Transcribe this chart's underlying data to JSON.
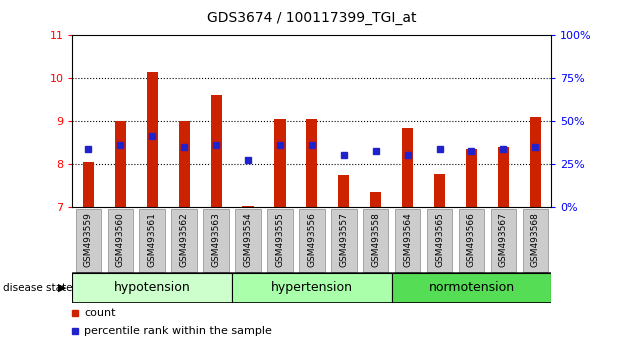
{
  "title": "GDS3674 / 100117399_TGI_at",
  "samples": [
    "GSM493559",
    "GSM493560",
    "GSM493561",
    "GSM493562",
    "GSM493563",
    "GSM493554",
    "GSM493555",
    "GSM493556",
    "GSM493557",
    "GSM493558",
    "GSM493564",
    "GSM493565",
    "GSM493566",
    "GSM493567",
    "GSM493568"
  ],
  "bar_values": [
    8.05,
    9.0,
    10.15,
    9.0,
    9.6,
    7.03,
    9.05,
    9.05,
    7.75,
    7.35,
    8.85,
    7.78,
    8.35,
    8.4,
    9.1
  ],
  "percentile_values": [
    8.35,
    8.45,
    8.65,
    8.4,
    8.45,
    8.1,
    8.45,
    8.45,
    8.22,
    8.3,
    8.22,
    8.35,
    8.3,
    8.35,
    8.4
  ],
  "bar_color": "#cc2200",
  "dot_color": "#2222cc",
  "ylim_left": [
    7,
    11
  ],
  "yticks_left": [
    7,
    8,
    9,
    10,
    11
  ],
  "ylim_right": [
    0,
    100
  ],
  "yticks_right": [
    0,
    25,
    50,
    75,
    100
  ],
  "y2labels": [
    "0%",
    "25%",
    "50%",
    "75%",
    "100%"
  ],
  "groups": [
    {
      "label": "hypotension",
      "start": 0,
      "end": 5,
      "color": "#ccffcc"
    },
    {
      "label": "hypertension",
      "start": 5,
      "end": 10,
      "color": "#aaffaa"
    },
    {
      "label": "normotension",
      "start": 10,
      "end": 15,
      "color": "#55dd55"
    }
  ],
  "disease_state_label": "disease state",
  "legend_count_label": "count",
  "legend_percentile_label": "percentile rank within the sample",
  "bar_width": 0.35,
  "label_box_color": "#cccccc",
  "label_box_edge": "#aaaaaa"
}
